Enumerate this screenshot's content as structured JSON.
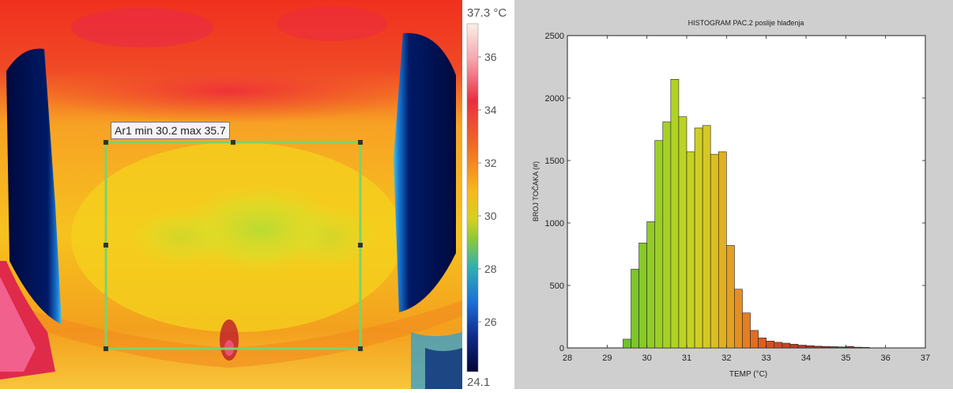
{
  "thermal": {
    "roi_label": "Ar1 min 30.2 max 35.7",
    "colorbar": {
      "max_label": "37.3 °C",
      "min_label": "24.1",
      "ticks": [
        "36",
        "34",
        "32",
        "30",
        "28",
        "26"
      ]
    }
  },
  "chart_data": {
    "type": "bar",
    "title": "HISTOGRAM PAC.2 poslije hlađenja",
    "xlabel": "TEMP (°C)",
    "ylabel": "BROJ TOČAKA (#)",
    "xlim": [
      28,
      37
    ],
    "ylim": [
      0,
      2500
    ],
    "xticks": [
      "28",
      "29",
      "30",
      "31",
      "32",
      "33",
      "34",
      "35",
      "36",
      "37"
    ],
    "yticks": [
      "0",
      "500",
      "1000",
      "1500",
      "2000",
      "2500"
    ],
    "bin_width": 0.2,
    "x": [
      29.5,
      29.7,
      29.9,
      30.1,
      30.3,
      30.5,
      30.7,
      30.9,
      31.1,
      31.3,
      31.5,
      31.7,
      31.9,
      32.1,
      32.3,
      32.5,
      32.7,
      32.9,
      33.1,
      33.3,
      33.5,
      33.7,
      33.9,
      34.1,
      34.3,
      34.5,
      34.7,
      34.9,
      35.1,
      35.3,
      35.5
    ],
    "values": [
      70,
      630,
      840,
      1010,
      1660,
      1810,
      2150,
      1850,
      1570,
      1760,
      1780,
      1550,
      1570,
      820,
      470,
      280,
      140,
      80,
      55,
      45,
      38,
      30,
      22,
      18,
      14,
      12,
      10,
      8,
      12,
      6,
      4
    ],
    "bar_colors": [
      "#6fc22a",
      "#7cc628",
      "#88ca27",
      "#92cc26",
      "#9ccf25",
      "#a6d124",
      "#b0d323",
      "#bcd323",
      "#c6d222",
      "#cfcf22",
      "#d6c822",
      "#dcbe22",
      "#e0b022",
      "#e3a022",
      "#e58f22",
      "#e47e22",
      "#e16d22",
      "#dc5e22",
      "#d55222",
      "#cd4a24",
      "#c44426",
      "#bb3f28",
      "#b23c2a",
      "#a8392c",
      "#9f372e",
      "#963530",
      "#8e3432",
      "#873334",
      "#813236",
      "#7b3138",
      "#76313a"
    ]
  }
}
